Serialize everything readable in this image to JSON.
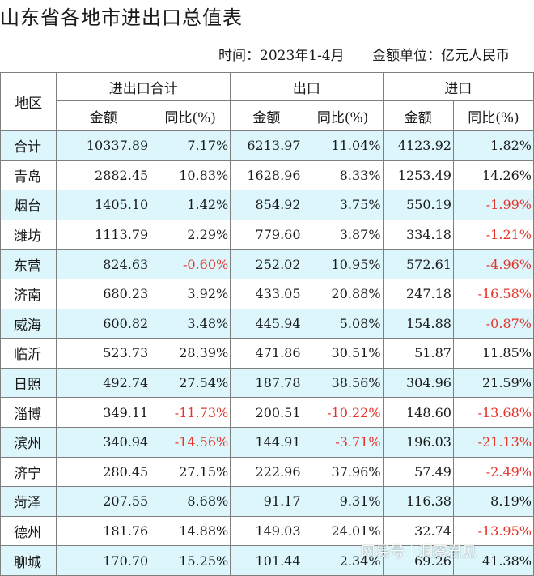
{
  "header": {
    "title": "山东省各地市进出口总值表",
    "time_text": "时间：2023年1-4月",
    "unit_text": "金额单位：亿元人民币"
  },
  "table": {
    "col_region": "地区",
    "group_total": "进出口合计",
    "group_export": "出口",
    "group_import": "进口",
    "sub_amount": "金额",
    "sub_yoy": "同比(%)",
    "rows": [
      [
        "合计",
        "10337.89",
        "7.17%",
        "6213.97",
        "11.04%",
        "4123.92",
        "1.82%"
      ],
      [
        "青岛",
        "2882.45",
        "10.83%",
        "1628.96",
        "8.33%",
        "1253.49",
        "14.26%"
      ],
      [
        "烟台",
        "1405.10",
        "1.42%",
        "854.92",
        "3.75%",
        "550.19",
        "-1.99%"
      ],
      [
        "潍坊",
        "1113.79",
        "2.29%",
        "779.60",
        "3.87%",
        "334.18",
        "-1.21%"
      ],
      [
        "东营",
        "824.63",
        "-0.60%",
        "252.02",
        "10.95%",
        "572.61",
        "-4.96%"
      ],
      [
        "济南",
        "680.23",
        "3.92%",
        "433.05",
        "20.88%",
        "247.18",
        "-16.58%"
      ],
      [
        "威海",
        "600.82",
        "3.48%",
        "445.94",
        "5.08%",
        "154.88",
        "-0.87%"
      ],
      [
        "临沂",
        "523.73",
        "28.39%",
        "471.86",
        "30.51%",
        "51.87",
        "11.85%"
      ],
      [
        "日照",
        "492.74",
        "27.54%",
        "187.78",
        "38.56%",
        "304.96",
        "21.59%"
      ],
      [
        "淄博",
        "349.11",
        "-11.73%",
        "200.51",
        "-10.22%",
        "148.60",
        "-13.68%"
      ],
      [
        "滨州",
        "340.94",
        "-14.56%",
        "144.91",
        "-3.71%",
        "196.03",
        "-21.13%"
      ],
      [
        "济宁",
        "280.45",
        "27.15%",
        "222.96",
        "37.96%",
        "57.49",
        "-2.49%"
      ],
      [
        "菏泽",
        "207.55",
        "8.68%",
        "91.17",
        "9.31%",
        "116.38",
        "8.19%"
      ],
      [
        "德州",
        "181.76",
        "14.88%",
        "149.03",
        "24.01%",
        "32.74",
        "-13.95%"
      ],
      [
        "聊城",
        "170.70",
        "15.25%",
        "101.44",
        "2.34%",
        "69.26",
        "41.38%"
      ]
    ]
  },
  "watermark": {
    "left": "网易号",
    "right": "洞察君见"
  },
  "colors": {
    "row_shade": "#dcf6fb",
    "negative": "#e5342a",
    "border": "#7f7f7f"
  }
}
